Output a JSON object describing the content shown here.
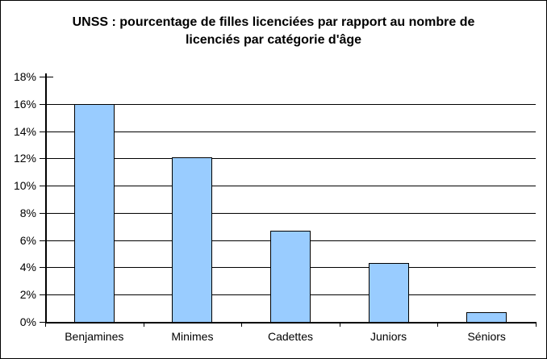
{
  "window": {
    "background": "#FFFFFF",
    "border_color": "#000000"
  },
  "chart_data": {
    "type": "bar",
    "title": "UNSS : pourcentage de filles licenciées par rapport au nombre de licenciés par catégorie d'âge",
    "title_lines": [
      "UNSS : pourcentage de filles licenciées par rapport au nombre de",
      "licenciés par catégorie d'âge"
    ],
    "categories": [
      "Benjamines",
      "Minimes",
      "Cadettes",
      "Juniors",
      "Séniors"
    ],
    "values": [
      16.0,
      12.1,
      6.7,
      4.3,
      0.7
    ],
    "xlabel": "",
    "ylabel": "",
    "ylim": [
      0,
      18
    ],
    "ytick_step": 2,
    "ytick_labels": [
      "0%",
      "2%",
      "4%",
      "6%",
      "8%",
      "10%",
      "12%",
      "14%",
      "16%",
      "18%"
    ],
    "grid": "horizontal",
    "top_gridline": false,
    "legend": "none",
    "bar_fill": "#99CCFF",
    "bar_border": "#000000",
    "axis_color": "#000000",
    "text_color": "#000000"
  }
}
